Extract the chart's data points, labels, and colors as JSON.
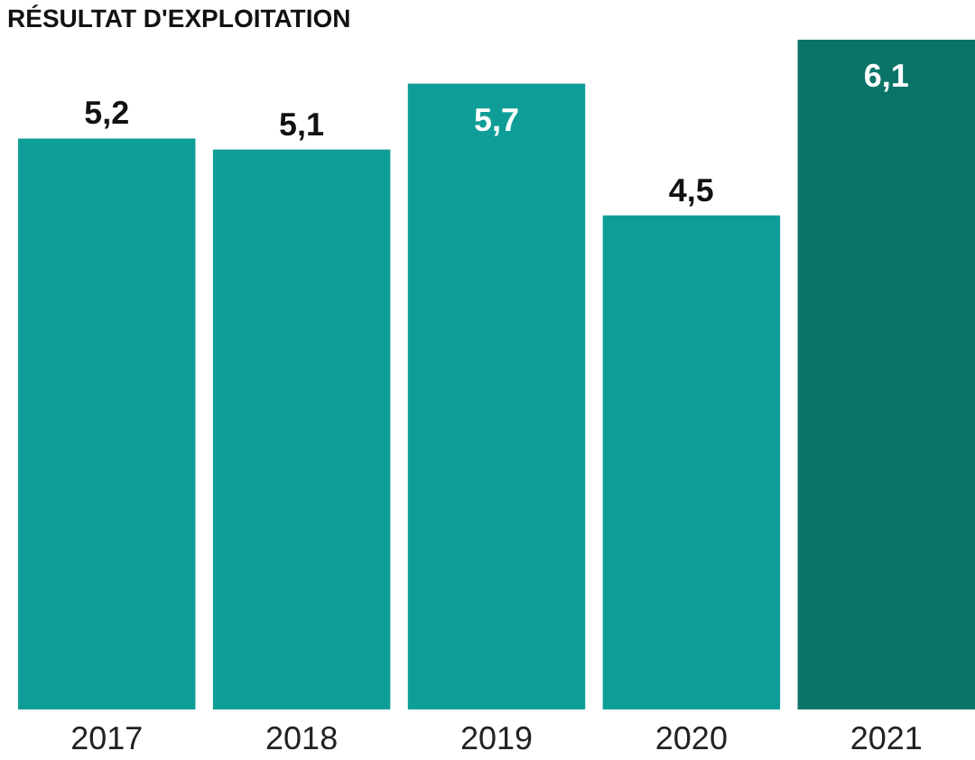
{
  "chart_data": {
    "type": "bar",
    "title": "RÉSULTAT D'EXPLOITATION",
    "categories": [
      "2017",
      "2018",
      "2019",
      "2020",
      "2021"
    ],
    "values": [
      5.2,
      5.1,
      5.7,
      4.5,
      6.1
    ],
    "value_labels": [
      "5,2",
      "5,1",
      "5,7",
      "4,5",
      "6,1"
    ],
    "colors": [
      "#0f9e97",
      "#0f9e97",
      "#0f9e97",
      "#0f9e97",
      "#0b7468"
    ]
  }
}
